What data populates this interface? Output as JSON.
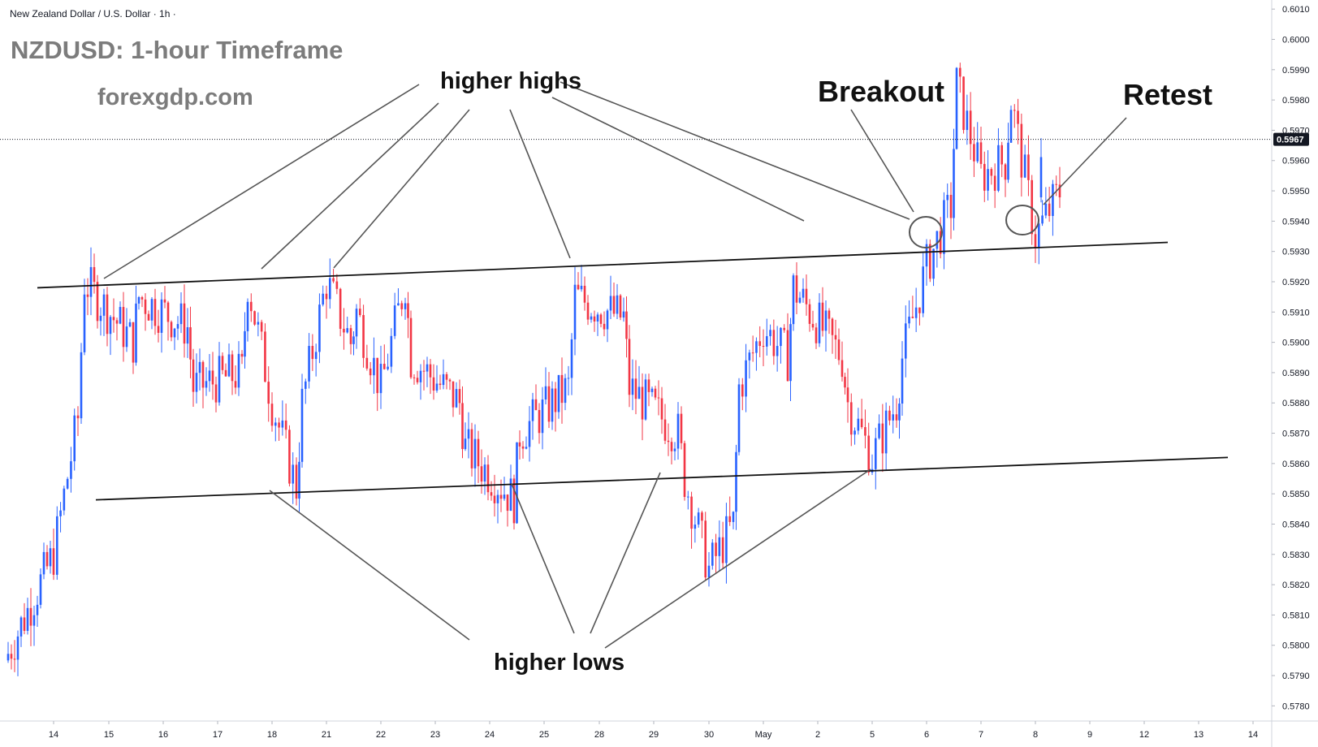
{
  "symbol_line": "New Zealand Dollar / U.S. Dollar · 1h ·",
  "title": "NZDUSD: 1-hour Timeframe",
  "watermark": "forexgdp.com",
  "annotations": {
    "higher_highs": "higher highs",
    "higher_lows": "higher lows",
    "breakout": "Breakout",
    "retest": "Retest"
  },
  "colors": {
    "up_candle": "#2962ff",
    "down_candle": "#f23645",
    "trendline": "#111111",
    "pointer_line": "#555555",
    "price_tag_bg": "#131722"
  },
  "chart_data": {
    "type": "candlestick",
    "symbol": "NZDUSD",
    "timeframe": "1h",
    "y_axis": {
      "range": [
        0.5775,
        0.6013
      ],
      "ticks": [
        "0.6010",
        "0.6000",
        "0.5990",
        "0.5980",
        "0.5970",
        "0.5960",
        "0.5950",
        "0.5940",
        "0.5930",
        "0.5920",
        "0.5910",
        "0.5900",
        "0.5890",
        "0.5880",
        "0.5870",
        "0.5860",
        "0.5850",
        "0.5840",
        "0.5830",
        "0.5820",
        "0.5810",
        "0.5800",
        "0.5790",
        "0.5780"
      ]
    },
    "x_axis": {
      "ticks": [
        "14",
        "15",
        "16",
        "17",
        "18",
        "21",
        "22",
        "23",
        "24",
        "25",
        "28",
        "29",
        "30",
        "May",
        "2",
        "5",
        "6",
        "7",
        "8",
        "9",
        "12",
        "13",
        "14"
      ]
    },
    "last_price": "0.5967",
    "close_path": [
      [
        "14",
        0.5795
      ],
      [
        "14",
        0.583
      ],
      [
        "14",
        0.5875
      ],
      [
        "15",
        0.592
      ],
      [
        "15",
        0.59
      ],
      [
        "16",
        0.5915
      ],
      [
        "16",
        0.5905
      ],
      [
        "17",
        0.5885
      ],
      [
        "17",
        0.589
      ],
      [
        "18",
        0.592
      ],
      [
        "18",
        0.588
      ],
      [
        "18",
        0.5852
      ],
      [
        "21",
        0.588
      ],
      [
        "21",
        0.592
      ],
      [
        "21",
        0.59
      ],
      [
        "22",
        0.591
      ],
      [
        "22",
        0.5885
      ],
      [
        "22",
        0.592
      ],
      [
        "23",
        0.5895
      ],
      [
        "23",
        0.588
      ],
      [
        "24",
        0.5865
      ],
      [
        "24",
        0.5848
      ],
      [
        "25",
        0.587
      ],
      [
        "25",
        0.5885
      ],
      [
        "28",
        0.5915
      ],
      [
        "28",
        0.5908
      ],
      [
        "29",
        0.5885
      ],
      [
        "29",
        0.587
      ],
      [
        "30",
        0.5855
      ],
      [
        "30",
        0.5825
      ],
      [
        "30",
        0.584
      ],
      [
        "May",
        0.5885
      ],
      [
        "May",
        0.5905
      ],
      [
        "May",
        0.5895
      ],
      [
        "2",
        0.5918
      ],
      [
        "2",
        0.5895
      ],
      [
        "5",
        0.588
      ],
      [
        "5",
        0.5862
      ],
      [
        "5",
        0.588
      ],
      [
        "6",
        0.5895
      ],
      [
        "6",
        0.5925
      ],
      [
        "6",
        0.5945
      ],
      [
        "7",
        0.5985
      ],
      [
        "7",
        0.5955
      ],
      [
        "7",
        0.596
      ],
      [
        "8",
        0.598
      ],
      [
        "8",
        0.5935
      ],
      [
        "8",
        0.595
      ],
      [
        "9",
        0.5967
      ]
    ],
    "trendlines": {
      "upper": [
        [
          "14",
          0.5918
        ],
        [
          "9",
          0.5933
        ]
      ],
      "lower": [
        [
          "15",
          0.5848
        ],
        [
          "14",
          0.5862
        ]
      ]
    }
  }
}
